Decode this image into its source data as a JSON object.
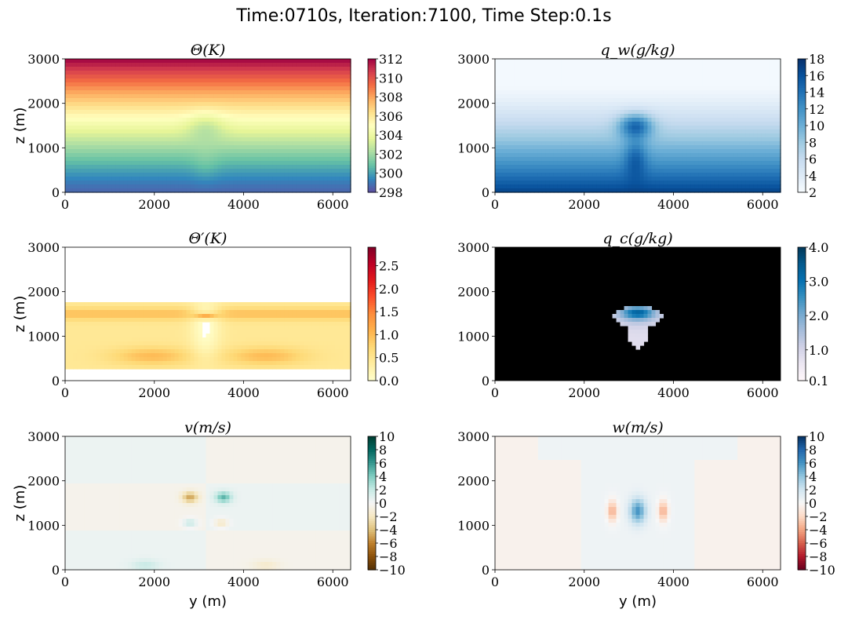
{
  "suptitle": "Time:0710s, Iteration:7100, Time Step:0.1s",
  "colors": {
    "accent_red": "#a50026",
    "accent_blue": "#08306b",
    "panel_black": "#000000"
  },
  "chart_data": [
    {
      "type": "heatmap",
      "title": "Θ(K)",
      "ylabel": "z (m)",
      "xlabel": "",
      "xlim": [
        0,
        6400
      ],
      "ylim": [
        0,
        3000
      ],
      "xticks": [
        "0",
        "2000",
        "4000",
        "6000"
      ],
      "yticks": [
        "0",
        "1000",
        "2000",
        "3000"
      ],
      "colormap": "Spectral_r",
      "colorbar_range": [
        298,
        312
      ],
      "colorbar_ticks": [
        "298",
        "300",
        "302",
        "304",
        "306",
        "308",
        "310",
        "312"
      ],
      "field": "theta"
    },
    {
      "type": "heatmap",
      "title": "q_w(g/kg)",
      "ylabel": "",
      "xlabel": "",
      "xlim": [
        0,
        6400
      ],
      "ylim": [
        0,
        3000
      ],
      "xticks": [
        "0",
        "2000",
        "4000",
        "6000"
      ],
      "yticks": [
        "0",
        "1000",
        "2000",
        "3000"
      ],
      "colormap": "Blues",
      "colorbar_range": [
        2,
        18
      ],
      "colorbar_ticks": [
        "2",
        "4",
        "6",
        "8",
        "10",
        "12",
        "14",
        "16",
        "18"
      ],
      "field": "qw"
    },
    {
      "type": "heatmap",
      "title": "Θ′(K)",
      "ylabel": "z (m)",
      "xlabel": "",
      "xlim": [
        0,
        6400
      ],
      "ylim": [
        0,
        3000
      ],
      "xticks": [
        "0",
        "2000",
        "4000",
        "6000"
      ],
      "yticks": [
        "0",
        "1000",
        "2000",
        "3000"
      ],
      "colormap": "YlOrRd",
      "colorbar_range": [
        0,
        2.9
      ],
      "colorbar_ticks": [
        "0.0",
        "0.5",
        "1.0",
        "1.5",
        "2.0",
        "2.5"
      ],
      "field": "thetap"
    },
    {
      "type": "heatmap",
      "title": "q_c(g/kg)",
      "ylabel": "",
      "xlabel": "",
      "xlim": [
        0,
        6400
      ],
      "ylim": [
        0,
        3000
      ],
      "xticks": [
        "0",
        "2000",
        "4000",
        "6000"
      ],
      "yticks": [
        "0",
        "1000",
        "2000",
        "3000"
      ],
      "colormap": "PuBu",
      "colorbar_range": [
        0.1,
        4.0
      ],
      "colorbar_ticks": [
        "0.1",
        "1.0",
        "2.0",
        "3.0",
        "4.0"
      ],
      "field": "qc"
    },
    {
      "type": "heatmap",
      "title": "v(m/s)",
      "ylabel": "z (m)",
      "xlabel": "y (m)",
      "xlim": [
        0,
        6400
      ],
      "ylim": [
        0,
        3000
      ],
      "xticks": [
        "0",
        "2000",
        "4000",
        "6000"
      ],
      "yticks": [
        "0",
        "1000",
        "2000",
        "3000"
      ],
      "colormap": "BrBG",
      "colorbar_range": [
        -10,
        10
      ],
      "colorbar_ticks": [
        "−10",
        "−8",
        "−6",
        "−4",
        "−2",
        "0",
        "2",
        "4",
        "6",
        "8",
        "10"
      ],
      "field": "v"
    },
    {
      "type": "heatmap",
      "title": "w(m/s)",
      "ylabel": "",
      "xlabel": "y (m)",
      "xlim": [
        0,
        6400
      ],
      "ylim": [
        0,
        3000
      ],
      "xticks": [
        "0",
        "2000",
        "4000",
        "6000"
      ],
      "yticks": [
        "0",
        "1000",
        "2000",
        "3000"
      ],
      "colormap": "RdBu",
      "colorbar_range": [
        -10,
        10
      ],
      "colorbar_ticks": [
        "−10",
        "−8",
        "−6",
        "−4",
        "−2",
        "0",
        "2",
        "4",
        "6",
        "8",
        "10"
      ],
      "field": "w"
    }
  ]
}
